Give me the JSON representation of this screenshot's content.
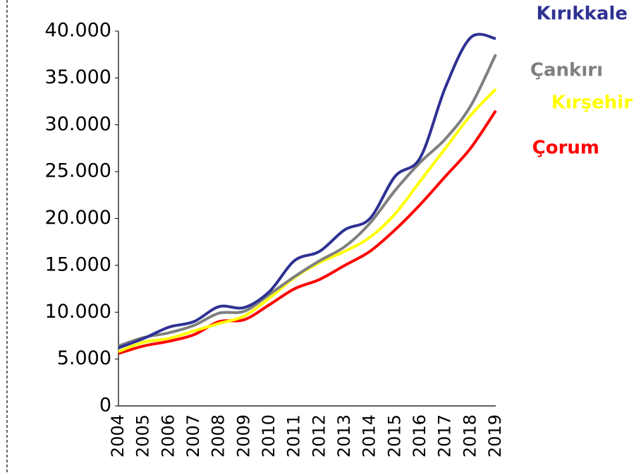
{
  "chart_data": {
    "type": "line",
    "categories": [
      "2004",
      "2005",
      "2006",
      "2007",
      "2008",
      "2009",
      "2010",
      "2011",
      "2012",
      "2013",
      "2014",
      "2015",
      "2016",
      "2017",
      "2018",
      "2019"
    ],
    "series": [
      {
        "name": "Kırıkkale",
        "color": "#2e3192",
        "values": [
          6200,
          7200,
          8400,
          9000,
          10600,
          10500,
          12200,
          15500,
          16500,
          18800,
          20000,
          24500,
          26500,
          34000,
          39300,
          39200
        ]
      },
      {
        "name": "Çankırı",
        "color": "#7f7f7f",
        "values": [
          6400,
          7300,
          7800,
          8600,
          9900,
          10100,
          11900,
          13800,
          15500,
          17000,
          19500,
          23000,
          26000,
          28500,
          32000,
          37500
        ]
      },
      {
        "name": "Kırşehir",
        "color": "#ffff00",
        "values": [
          5800,
          6800,
          7200,
          8000,
          8800,
          9600,
          11500,
          13700,
          15300,
          16500,
          18000,
          20500,
          24000,
          27500,
          31000,
          33800
        ]
      },
      {
        "name": "Çorum",
        "color": "#ff0000",
        "values": [
          5600,
          6400,
          6900,
          7600,
          9000,
          9200,
          10800,
          12500,
          13500,
          15000,
          16500,
          18800,
          21500,
          24500,
          27500,
          31500
        ]
      }
    ],
    "ylim": [
      0,
      40000
    ],
    "yticks": [
      0,
      {
        "value": 5000,
        "label": "5.000"
      },
      {
        "value": 10000,
        "label": "10.000"
      },
      {
        "value": 15000,
        "label": "15.000"
      },
      {
        "value": 20000,
        "label": "20.000"
      },
      {
        "value": 25000,
        "label": "25.000"
      },
      {
        "value": 30000,
        "label": "30.000"
      },
      {
        "value": 35000,
        "label": "35.000"
      },
      {
        "value": 40000,
        "label": "40.000"
      }
    ]
  }
}
